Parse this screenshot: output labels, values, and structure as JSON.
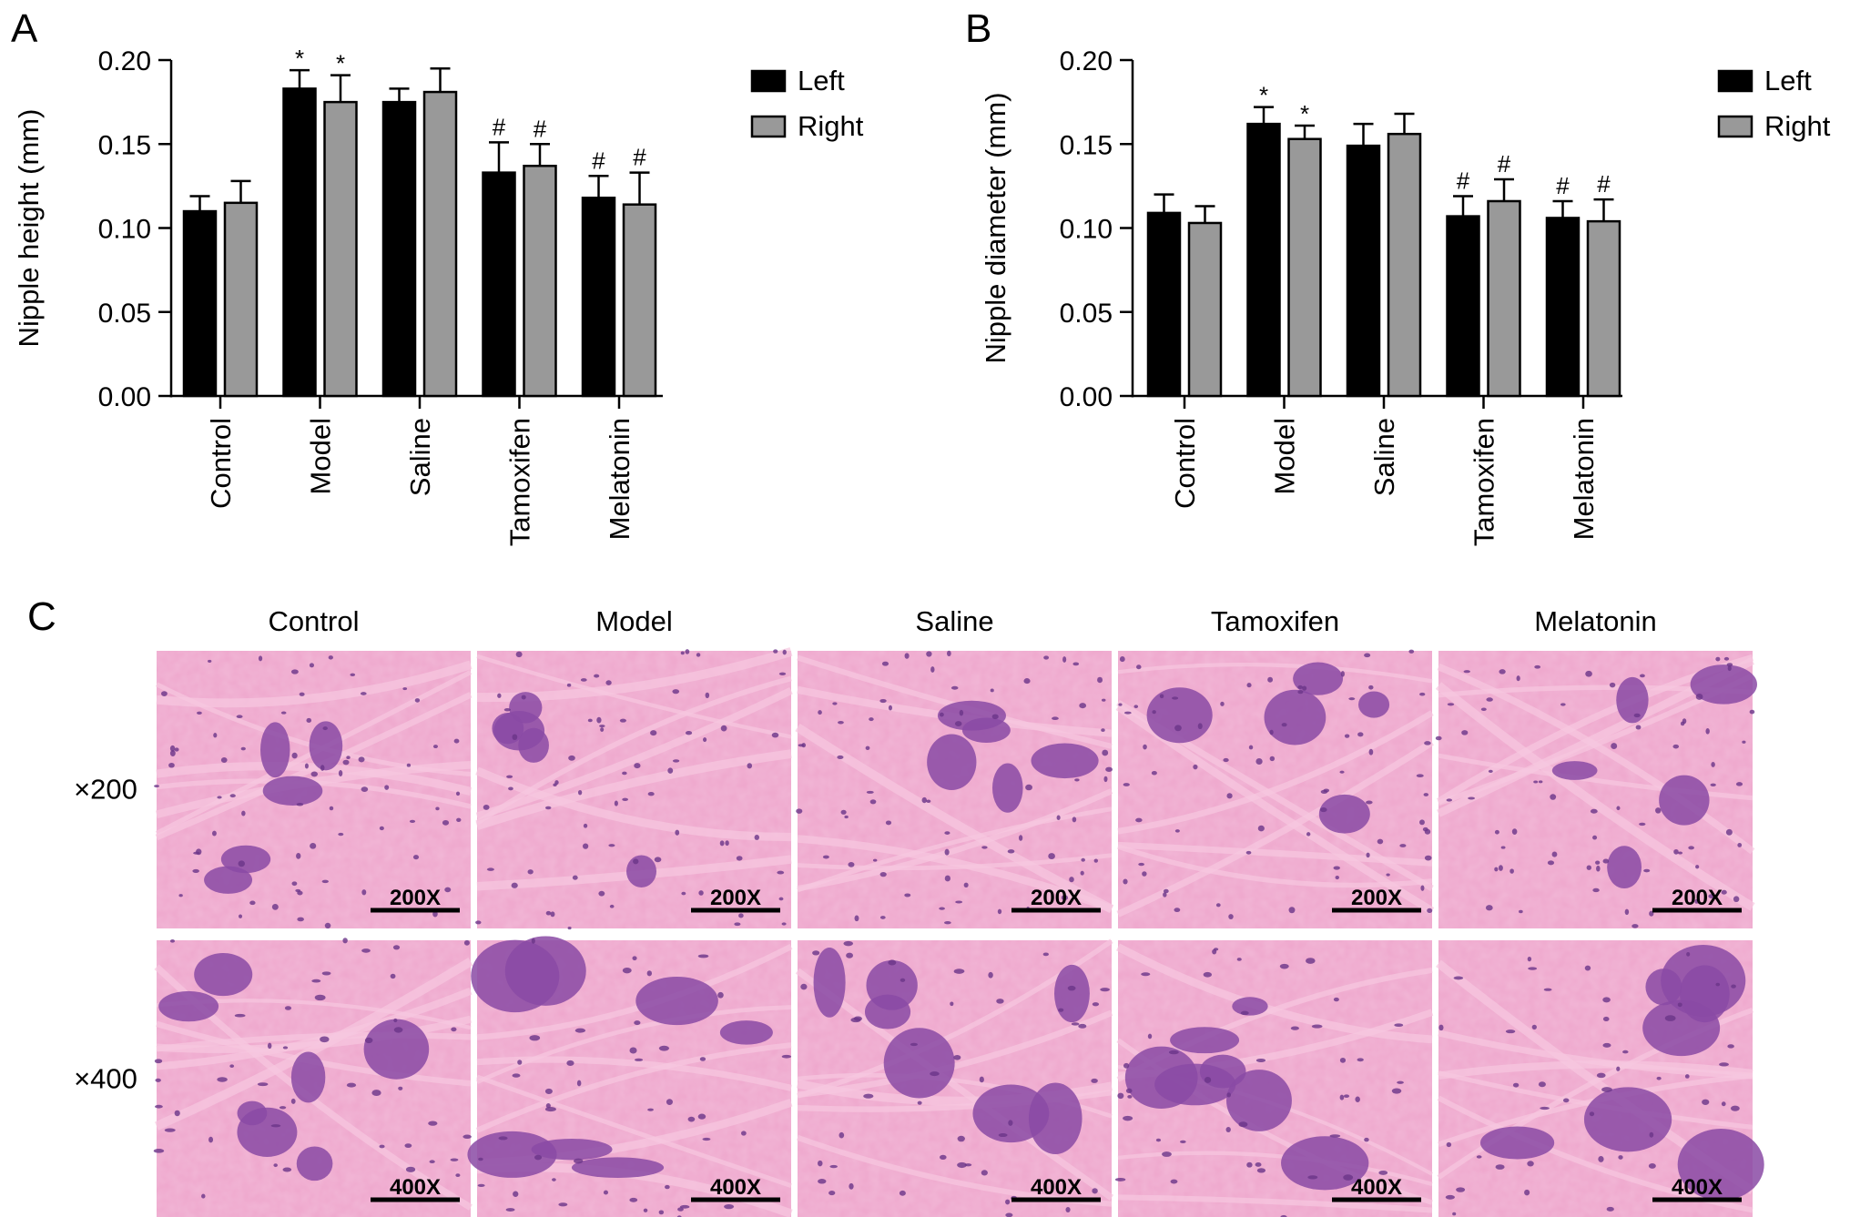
{
  "panels": {
    "a": "A",
    "b": "B",
    "c": "C"
  },
  "colors": {
    "left": "#000000",
    "right": "#999999",
    "tissue_bg": "#eea6cc",
    "tissue_stroma": "#e890bd",
    "tissue_nuclei": "#6a3488",
    "tissue_gland": "#8a4aa4"
  },
  "chart_data": [
    {
      "panel": "A",
      "type": "bar",
      "categories": [
        "Control",
        "Model",
        "Saline",
        "Tamoxifen",
        "Melatonin"
      ],
      "ylabel": "Nipple height (mm)",
      "xlabel": "",
      "ylim": [
        0,
        0.2
      ],
      "yticks": [
        "0.00",
        "0.05",
        "0.10",
        "0.15",
        "0.20"
      ],
      "legend": "top-right",
      "series": [
        {
          "name": "Left",
          "values": [
            0.11,
            0.183,
            0.175,
            0.133,
            0.118
          ],
          "errors": [
            0.009,
            0.011,
            0.008,
            0.018,
            0.013
          ],
          "marks": [
            "",
            "*",
            "",
            "#",
            "#"
          ]
        },
        {
          "name": "Right",
          "values": [
            0.115,
            0.175,
            0.181,
            0.137,
            0.114
          ],
          "errors": [
            0.013,
            0.016,
            0.014,
            0.013,
            0.019
          ],
          "marks": [
            "",
            "*",
            "",
            "#",
            "#"
          ]
        }
      ]
    },
    {
      "panel": "B",
      "type": "bar",
      "categories": [
        "Control",
        "Model",
        "Saline",
        "Tamoxifen",
        "Melatonin"
      ],
      "ylabel": "Nipple diameter (mm)",
      "xlabel": "",
      "ylim": [
        0,
        0.2
      ],
      "yticks": [
        "0.00",
        "0.05",
        "0.10",
        "0.15",
        "0.20"
      ],
      "legend": "top-right",
      "series": [
        {
          "name": "Left",
          "values": [
            0.109,
            0.162,
            0.149,
            0.107,
            0.106
          ],
          "errors": [
            0.011,
            0.01,
            0.013,
            0.012,
            0.01
          ],
          "marks": [
            "",
            "*",
            "",
            "#",
            "#"
          ]
        },
        {
          "name": "Right",
          "values": [
            0.103,
            0.153,
            0.156,
            0.116,
            0.104
          ],
          "errors": [
            0.01,
            0.008,
            0.012,
            0.013,
            0.013
          ],
          "marks": [
            "",
            "*",
            "",
            "#",
            "#"
          ]
        }
      ]
    }
  ],
  "histology": {
    "columns": [
      "Control",
      "Model",
      "Saline",
      "Tamoxifen",
      "Melatonin"
    ],
    "rows": [
      {
        "label": "×200",
        "scale": "200X"
      },
      {
        "label": "×400",
        "scale": "400X"
      }
    ]
  }
}
